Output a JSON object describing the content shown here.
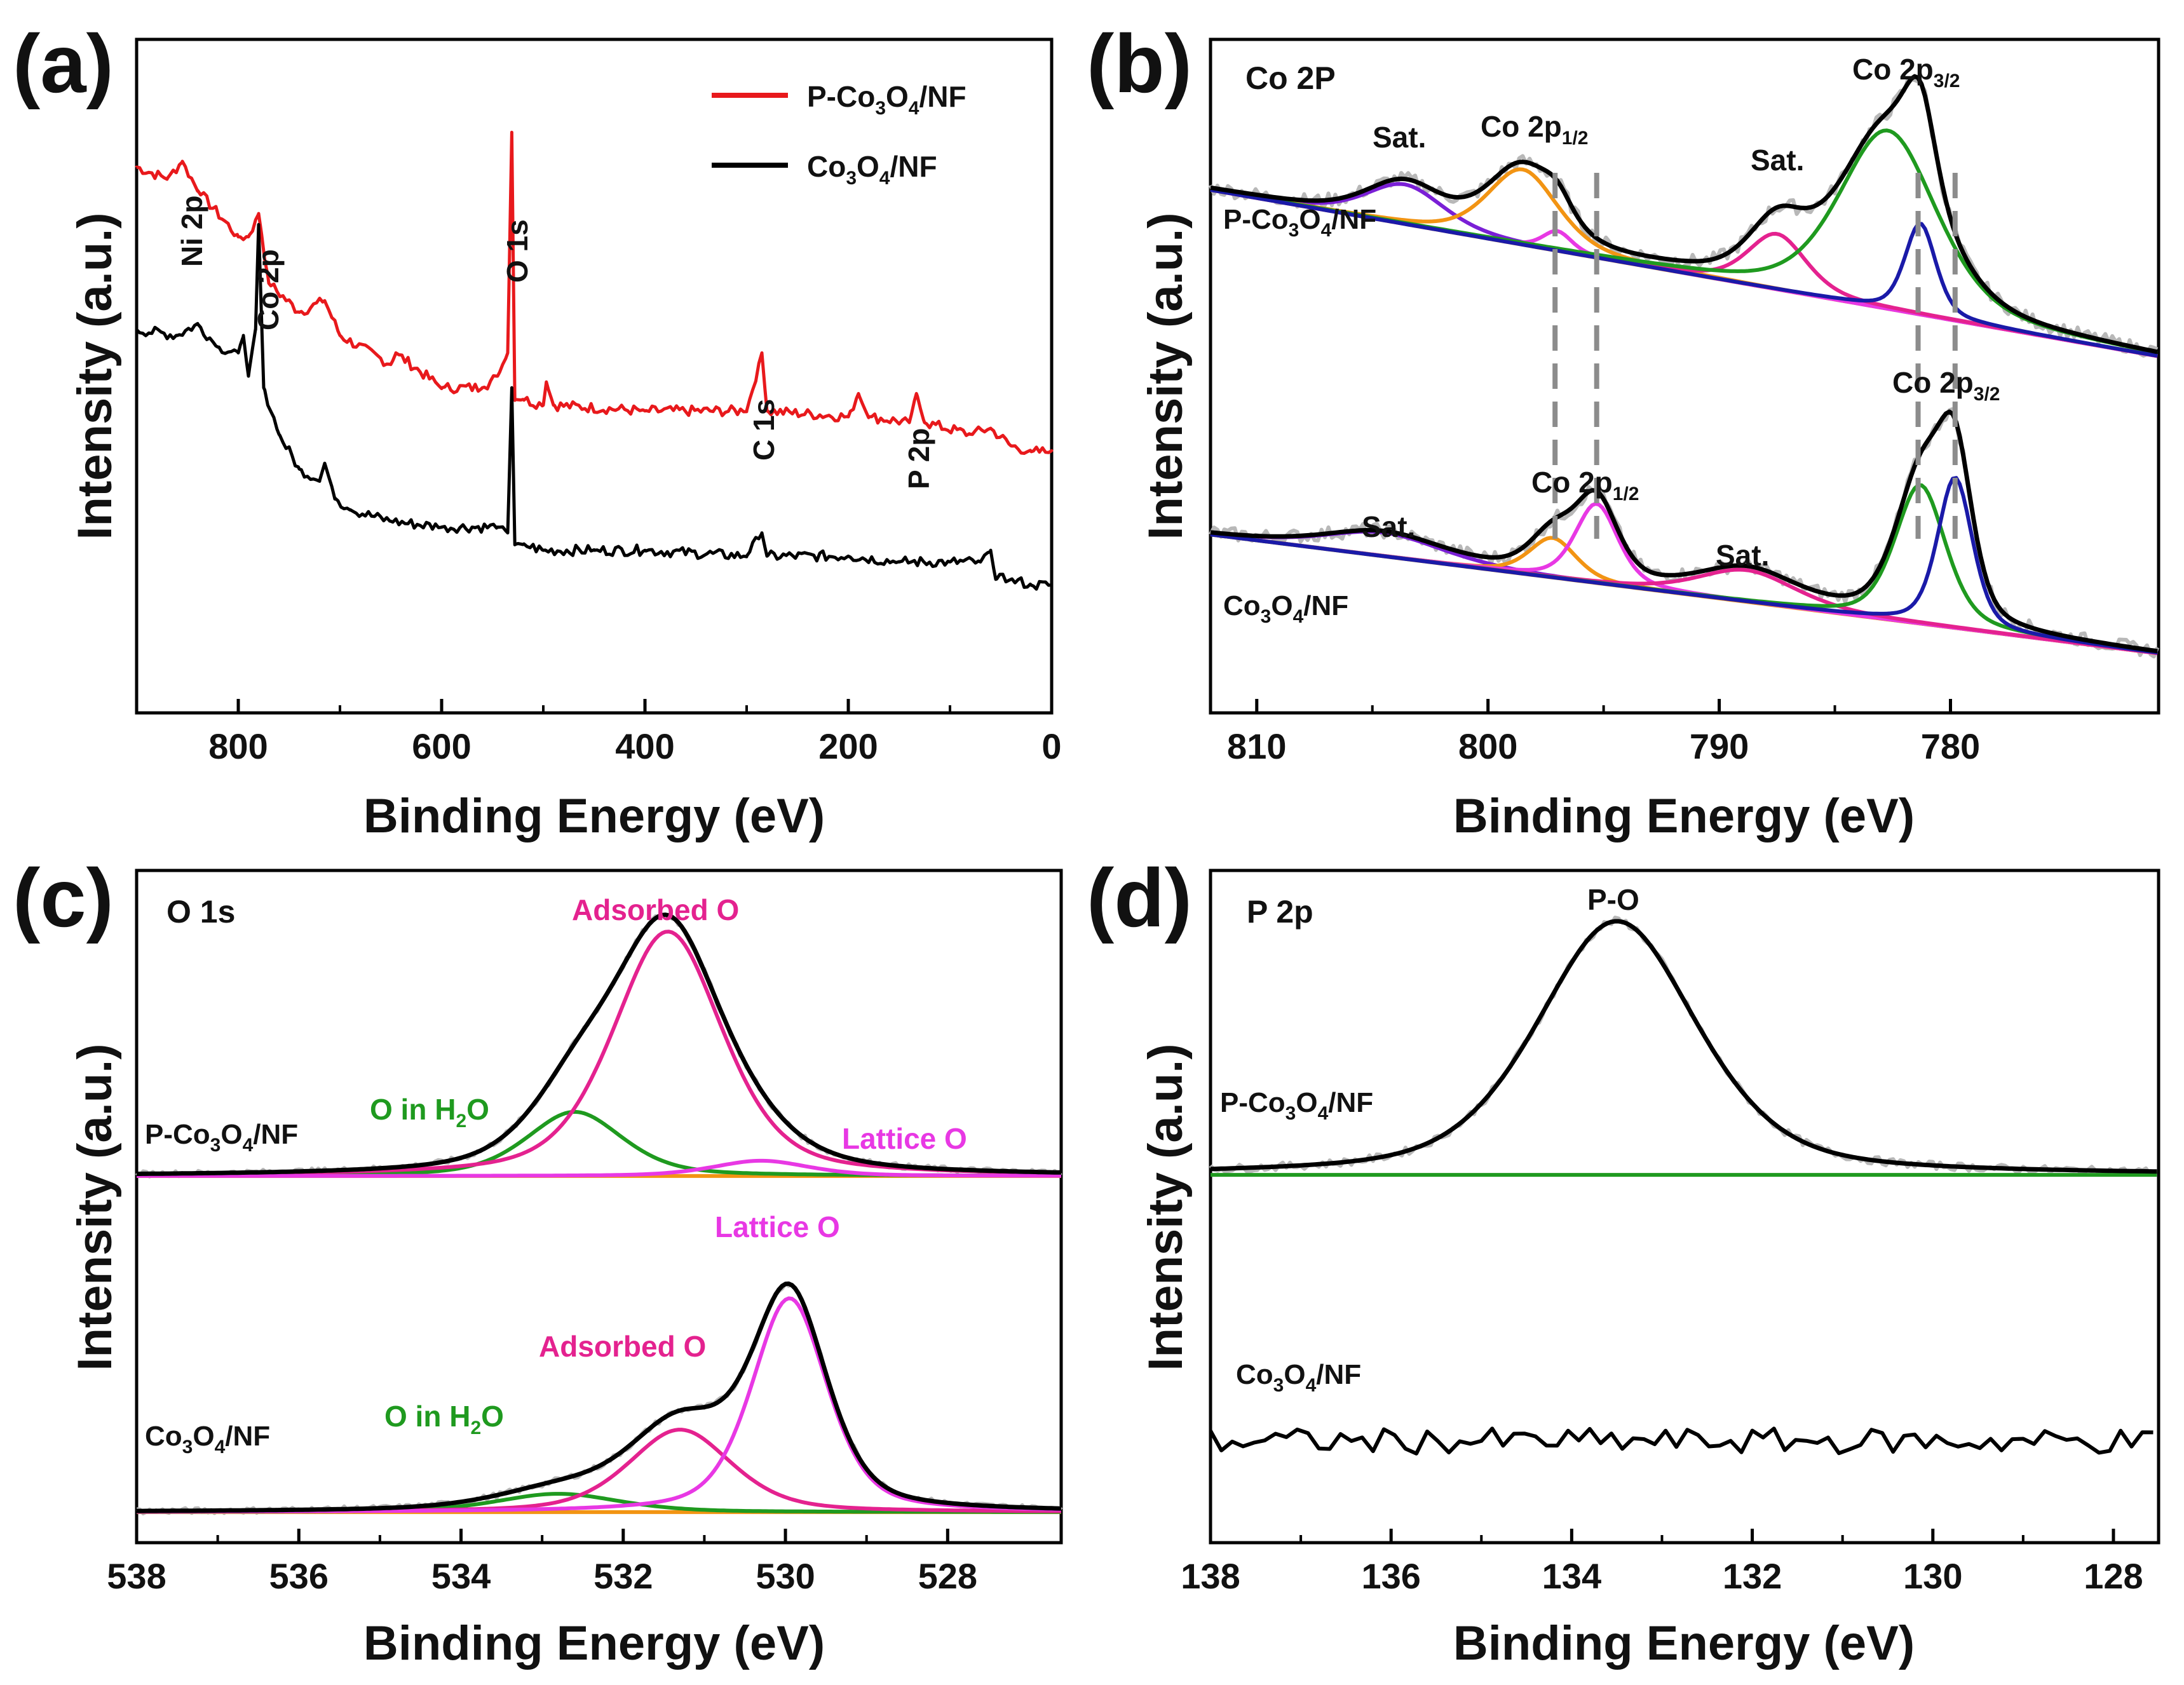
{
  "colors": {
    "red": "#e8191c",
    "black": "#000000",
    "gray": "#b8b8b8",
    "purple": "#7a1fd6",
    "orange": "#f29413",
    "magenta": "#e4228f",
    "violet": "#e838e4",
    "green": "#1f9a1f",
    "blue": "#1a1aa8",
    "baseline": "#8a2be2",
    "dash": "#8c8c8c"
  },
  "chart_data": [
    {
      "id": "a",
      "type": "line",
      "panel_label": "(a)",
      "xlabel": "Binding Energy (eV)",
      "ylabel": "Intensity (a.u.)",
      "xlim": [
        900,
        0
      ],
      "xticks": [
        800,
        600,
        400,
        200,
        0
      ],
      "legend": [
        {
          "label": "P-Co3O4/NF",
          "color": "#e8191c"
        },
        {
          "label": "Co3O4/NF",
          "color": "#000000"
        }
      ],
      "peak_labels": [
        {
          "text": "Ni 2p",
          "x": 855
        },
        {
          "text": "Co 2p",
          "x": 780
        },
        {
          "text": "O 1s",
          "x": 531
        },
        {
          "text": "C 1s",
          "x": 285
        },
        {
          "text": "P 2p",
          "x": 133
        }
      ],
      "series": [
        {
          "name": "P-Co3O4/NF",
          "color": "#e8191c",
          "x": [
            900,
            870,
            855,
            840,
            800,
            790,
            780,
            770,
            740,
            715,
            700,
            650,
            645,
            600,
            560,
            545,
            535,
            531,
            528,
            520,
            500,
            497,
            490,
            400,
            300,
            285,
            280,
            200,
            190,
            180,
            140,
            133,
            125,
            80,
            60,
            40,
            20,
            0
          ],
          "y": [
            5.9,
            5.8,
            5.95,
            5.7,
            5.3,
            5.3,
            5.5,
            4.9,
            4.65,
            4.75,
            4.45,
            4.2,
            4.3,
            4.0,
            4.0,
            4.1,
            4.3,
            6.2,
            3.9,
            3.9,
            3.85,
            4.05,
            3.85,
            3.8,
            3.8,
            4.3,
            3.8,
            3.75,
            3.95,
            3.75,
            3.7,
            3.95,
            3.7,
            3.6,
            3.65,
            3.5,
            3.45,
            3.45
          ]
        },
        {
          "name": "Co3O4/NF",
          "color": "#000000",
          "x": [
            900,
            860,
            840,
            820,
            800,
            795,
            790,
            783,
            780,
            775,
            760,
            740,
            720,
            715,
            705,
            690,
            650,
            600,
            545,
            535,
            531,
            528,
            520,
            500,
            450,
            400,
            300,
            285,
            280,
            200,
            150,
            100,
            70,
            60,
            55,
            40,
            20,
            0
          ],
          "y": [
            4.5,
            4.45,
            4.55,
            4.35,
            4.3,
            4.45,
            4.1,
            4.5,
            5.4,
            4.0,
            3.6,
            3.3,
            3.2,
            3.35,
            3.05,
            2.95,
            2.85,
            2.8,
            2.8,
            2.75,
            4.0,
            2.65,
            2.65,
            2.6,
            2.6,
            2.6,
            2.55,
            2.75,
            2.55,
            2.55,
            2.5,
            2.5,
            2.5,
            2.6,
            2.35,
            2.35,
            2.3,
            2.3
          ]
        }
      ]
    },
    {
      "id": "b",
      "type": "line",
      "panel_label": "(b)",
      "title": "Co 2P",
      "xlabel": "Binding Energy (eV)",
      "ylabel": "Intensity (a.u.)",
      "xlim": [
        812,
        771
      ],
      "xticks": [
        810,
        800,
        790,
        780
      ],
      "dashed_lines_x": [
        797.1,
        795.3,
        781.4,
        779.8
      ],
      "upper": {
        "sample": "P-Co3O4/NF",
        "offset": 0.65,
        "baseline": [
          [
            812,
            0.52
          ],
          [
            771,
            0.1
          ]
        ],
        "peaks": [
          {
            "label": "Sat.",
            "center": 803.6,
            "height": 0.1,
            "width": 4.0,
            "color": "#7a1fd6"
          },
          {
            "label": "Co 2p1/2",
            "center": 798.5,
            "height": 0.19,
            "width": 3.6,
            "color": "#f29413"
          },
          {
            "label": "",
            "center": 797.0,
            "height": 0.05,
            "width": 1.5,
            "color": "#e838e4"
          },
          {
            "label": "Sat.",
            "center": 787.5,
            "height": 0.14,
            "width": 3.0,
            "color": "#e4228f"
          },
          {
            "label": "Co 2p3/2",
            "center": 782.7,
            "height": 0.45,
            "width": 5.0,
            "color": "#1f9a1f"
          },
          {
            "label": "",
            "center": 781.3,
            "height": 0.23,
            "width": 1.6,
            "color": "#1a1aa8"
          }
        ]
      },
      "lower": {
        "sample": "Co3O4/NF",
        "offset": 0.0,
        "baseline": [
          [
            812,
            0.3
          ],
          [
            771,
            0.0
          ]
        ],
        "peaks": [
          {
            "label": "Sat.",
            "center": 804.5,
            "height": 0.06,
            "width": 6.0,
            "color": "#7a1fd6"
          },
          {
            "label": "",
            "center": 797.2,
            "height": 0.1,
            "width": 2.4,
            "color": "#f29413"
          },
          {
            "label": "Co 2p1/2",
            "center": 795.3,
            "height": 0.2,
            "width": 2.2,
            "color": "#e838e4"
          },
          {
            "label": "Sat.",
            "center": 788.8,
            "height": 0.08,
            "width": 5.0,
            "color": "#e4228f"
          },
          {
            "label": "",
            "center": 781.3,
            "height": 0.35,
            "width": 2.6,
            "color": "#1f9a1f"
          },
          {
            "label": "Co 2p3/2",
            "center": 779.8,
            "height": 0.38,
            "width": 1.8,
            "color": "#1a1aa8"
          }
        ]
      },
      "ylim": [
        -0.15,
        1.55
      ]
    },
    {
      "id": "c",
      "type": "line",
      "panel_label": "(c)",
      "title": "O 1s",
      "xlabel": "Binding Energy (eV)",
      "ylabel": "Intensity (a.u.)",
      "xlim": [
        538,
        526.6
      ],
      "xticks": [
        538,
        536,
        534,
        532,
        530,
        528
      ],
      "upper": {
        "sample": "P-Co3O4/NF",
        "offset": 1.1,
        "peaks": [
          {
            "label": "O in H2O",
            "center": 532.6,
            "height": 0.21,
            "width": 1.4,
            "color": "#1f9a1f"
          },
          {
            "label": "Adsorbed O",
            "center": 531.45,
            "height": 0.8,
            "width": 1.6,
            "color": "#e4228f"
          },
          {
            "label": "Lattice O",
            "center": 530.3,
            "height": 0.05,
            "width": 1.4,
            "color": "#e838e4"
          }
        ]
      },
      "lower": {
        "sample": "Co3O4/NF",
        "offset": 0.0,
        "peaks": [
          {
            "label": "O in H2O",
            "center": 532.8,
            "height": 0.06,
            "width": 1.8,
            "color": "#1f9a1f"
          },
          {
            "label": "Adsorbed O",
            "center": 531.3,
            "height": 0.27,
            "width": 1.5,
            "color": "#e4228f"
          },
          {
            "label": "Lattice O",
            "center": 529.95,
            "height": 0.7,
            "width": 1.1,
            "color": "#e838e4"
          }
        ]
      },
      "ylim": [
        -0.1,
        2.1
      ]
    },
    {
      "id": "d",
      "type": "line",
      "panel_label": "(d)",
      "title": "P 2p",
      "xlabel": "Binding Energy (eV)",
      "ylabel": "Intensity (a.u.)",
      "xlim": [
        138,
        127.5
      ],
      "xticks": [
        138,
        136,
        134,
        132,
        130,
        128
      ],
      "upper": {
        "sample": "P-Co3O4/NF",
        "offset": 0.0,
        "peaks": [
          {
            "label": "P-O",
            "center": 133.5,
            "height": 1.0,
            "width": 2.1,
            "color": "#1f9a1f"
          }
        ]
      },
      "lower": {
        "sample": "Co3O4/NF",
        "level": -1.05,
        "noise": 0.05
      },
      "ylim": [
        -1.45,
        1.2
      ]
    }
  ],
  "labels": {
    "a": {
      "letter": "(a)",
      "legend1": "P-Co3O4/NF",
      "legend2": "Co3O4/NF",
      "ni": "Ni 2p",
      "co": "Co 2p",
      "o": "O 1s",
      "c": "C 1s",
      "p": "P 2p"
    },
    "b": {
      "letter": "(b)",
      "title": "Co 2P",
      "sat": "Sat.",
      "up": "P-Co3O4/NF",
      "low": "Co3O4/NF"
    },
    "c": {
      "letter": "(c)",
      "title": "O 1s",
      "ads": "Adsorbed O",
      "h2o": "O in H2O",
      "lat": "Lattice O",
      "up": "P-Co3O4/NF",
      "low": "Co3O4/NF"
    },
    "d": {
      "letter": "(d)",
      "title": "P 2p",
      "po": "P-O",
      "up": "P-Co3O4/NF",
      "low": "Co3O4/NF"
    },
    "xlabel": "Binding Energy (eV)",
    "ylabel": "Intensity (a.u.)"
  }
}
